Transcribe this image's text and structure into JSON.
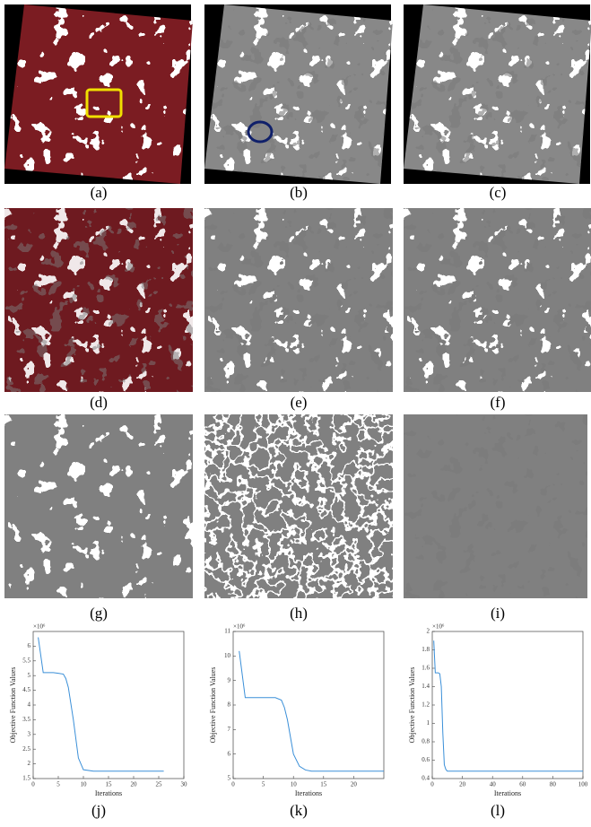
{
  "panel_labels": [
    "(a)",
    "(b)",
    "(c)",
    "(d)",
    "(e)",
    "(f)",
    "(g)",
    "(h)",
    "(i)",
    "(j)",
    "(k)",
    "(l)"
  ],
  "chart_data": [
    {
      "type": "line",
      "exponent": "×10⁶",
      "x_label": "Iterations",
      "y_label": "Objective Function Values",
      "series": [
        {
          "color": "#3a8fd8",
          "x": [
            1,
            2,
            3,
            4,
            5,
            6,
            6.5,
            7,
            8,
            9,
            10,
            12,
            15,
            20,
            26
          ],
          "values": [
            6.3,
            5.1,
            5.1,
            5.1,
            5.08,
            5.05,
            4.9,
            4.6,
            3.5,
            2.2,
            1.8,
            1.75,
            1.75,
            1.75,
            1.75
          ]
        }
      ],
      "xlim": [
        0,
        30
      ],
      "xticks": [
        0,
        5,
        10,
        15,
        20,
        25,
        30
      ],
      "ylim": [
        1.5,
        6.5
      ],
      "yticks": [
        1.5,
        2,
        2.5,
        3,
        3.5,
        4,
        4.5,
        5,
        5.5,
        6
      ]
    },
    {
      "type": "line",
      "exponent": "×10⁶",
      "x_label": "Iterations",
      "y_label": "Objective Function Values",
      "series": [
        {
          "color": "#3a8fd8",
          "x": [
            1,
            2,
            3,
            5,
            7,
            8,
            8.5,
            9,
            10,
            11,
            12,
            13,
            15,
            20,
            25
          ],
          "values": [
            10.2,
            8.3,
            8.3,
            8.3,
            8.3,
            8.2,
            7.9,
            7.4,
            6.0,
            5.5,
            5.35,
            5.3,
            5.3,
            5.3,
            5.3
          ]
        }
      ],
      "xlim": [
        0,
        25
      ],
      "xticks": [
        0,
        5,
        10,
        15,
        20
      ],
      "ylim": [
        5,
        11
      ],
      "yticks": [
        5,
        6,
        7,
        8,
        9,
        10,
        11
      ]
    },
    {
      "type": "line",
      "exponent": "×10⁶",
      "x_label": "Iterations",
      "y_label": "Objective Function Values",
      "series": [
        {
          "color": "#3a8fd8",
          "x": [
            1,
            2,
            3,
            4,
            5,
            6,
            7,
            8,
            9,
            10,
            20,
            50,
            100
          ],
          "values": [
            1.9,
            1.55,
            1.55,
            1.55,
            1.54,
            1.4,
            0.9,
            0.55,
            0.5,
            0.48,
            0.48,
            0.48,
            0.48
          ]
        }
      ],
      "xlim": [
        0,
        100
      ],
      "xticks": [
        0,
        20,
        40,
        60,
        80,
        100
      ],
      "ylim": [
        0.4,
        2
      ],
      "yticks": [
        0.4,
        0.6,
        0.8,
        1,
        1.2,
        1.4,
        1.6,
        1.8,
        2
      ]
    }
  ]
}
